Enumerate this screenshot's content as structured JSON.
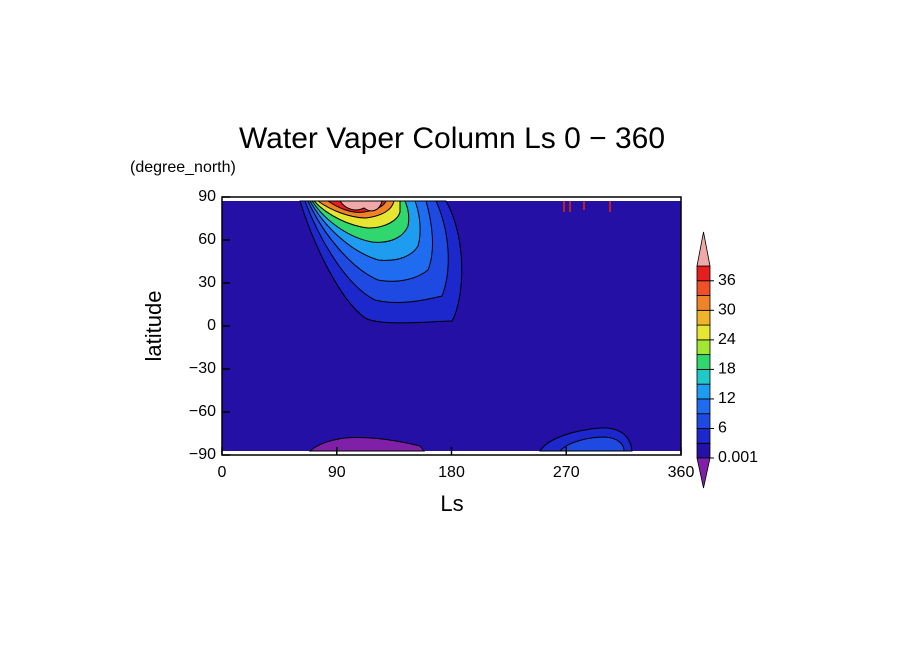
{
  "chart_data": {
    "type": "contour",
    "title": "Water Vaper Column Ls 0 − 360",
    "subtitle": "(degree_north)",
    "x_label": "Ls",
    "y_label": "latitude",
    "xlim": [
      0,
      360
    ],
    "xticks": [
      0,
      90,
      180,
      270,
      360
    ],
    "ylim": [
      -90,
      90
    ],
    "yticks": [
      {
        "value": -90,
        "label": "−90"
      },
      {
        "value": -60,
        "label": "−60"
      },
      {
        "value": -30,
        "label": "−30"
      },
      0,
      30,
      60,
      90
    ],
    "colorbar": {
      "levels": [
        0.001,
        3,
        6,
        9,
        12,
        15,
        18,
        21,
        24,
        27,
        30,
        33,
        36,
        39
      ],
      "colors": [
        "#2410a4",
        "#1c28cc",
        "#1e4ae2",
        "#206cf0",
        "#1e9cf0",
        "#20c8c8",
        "#30d66e",
        "#a0e632",
        "#e6e632",
        "#f0b428",
        "#f08228",
        "#f05028",
        "#e61e1e"
      ],
      "under_color": "#8020a8",
      "over_color": "#f0a8a8",
      "ticks": [
        0.001,
        6,
        12,
        18,
        24,
        30,
        36
      ]
    }
  }
}
